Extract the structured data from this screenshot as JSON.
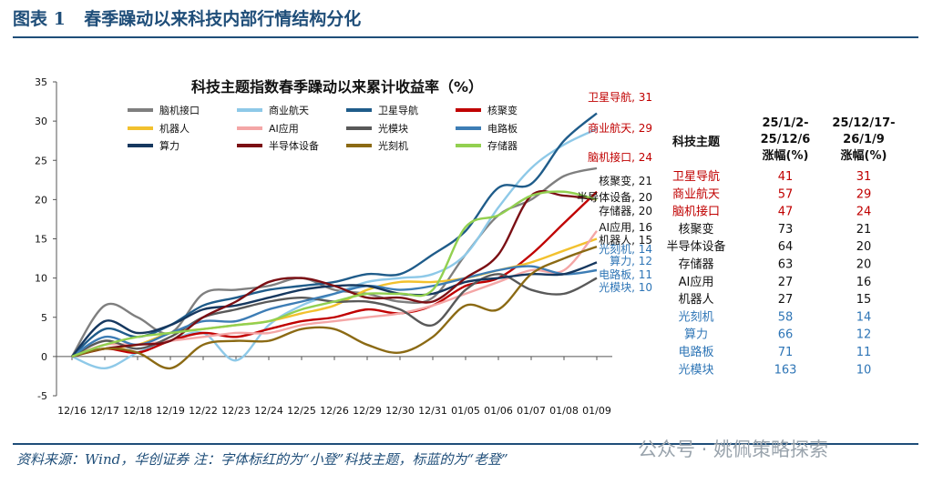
{
  "header": {
    "figure_no": "图表 1",
    "title": "春季躁动以来科技内部行情结构分化"
  },
  "footer": {
    "source": "资料来源：Wind，华创证券  注：字体标红的为“小登”科技主题，标蓝的为“老登”"
  },
  "watermark": {
    "text": "公众号 · 姚佩策略探索"
  },
  "colors": {
    "accent": "#1f4e79",
    "red": "#c00000",
    "blue": "#2e75b6",
    "black": "#111111"
  },
  "chart_data": {
    "type": "line",
    "title": "科技主题指数春季躁动以来累计收益率（%）",
    "xlabel": "",
    "ylabel": "",
    "ylim": [
      -5,
      35
    ],
    "yticks": [
      -5,
      0,
      5,
      10,
      15,
      20,
      25,
      30,
      35
    ],
    "x_labels": [
      "12/16",
      "12/17",
      "12/18",
      "12/19",
      "12/22",
      "12/23",
      "12/24",
      "12/25",
      "12/26",
      "12/29",
      "12/30",
      "12/31",
      "01/05",
      "01/06",
      "01/07",
      "01/08",
      "01/09"
    ],
    "series": [
      {
        "name": "脑机接口",
        "color": "#7f7f7f",
        "end_label": "脑机接口, 24",
        "label_color": "#c00000",
        "values": [
          0,
          6.5,
          5,
          3,
          8,
          8.5,
          9,
          10,
          8.5,
          8,
          7,
          7.5,
          13,
          18,
          20,
          23,
          24
        ]
      },
      {
        "name": "商业航天",
        "color": "#8ec9e8",
        "end_label": "商业航天, 29",
        "label_color": "#c00000",
        "values": [
          0,
          -1.5,
          0.5,
          2,
          3,
          -0.5,
          4,
          6.5,
          8,
          9.5,
          10,
          10.5,
          13,
          19,
          24,
          27,
          29
        ]
      },
      {
        "name": "卫星导航",
        "color": "#1f5c8a",
        "end_label": "卫星导航, 31",
        "label_color": "#c00000",
        "values": [
          0,
          3.5,
          2.5,
          4,
          6.5,
          7.5,
          8.5,
          9,
          9.5,
          10.5,
          10.5,
          13,
          16,
          21.5,
          22,
          27.5,
          31
        ]
      },
      {
        "name": "核聚变",
        "color": "#c00000",
        "end_label": "核聚变, 21",
        "label_color": "#111111",
        "values": [
          0,
          1,
          0.5,
          2,
          3,
          2.5,
          3.5,
          4.5,
          5,
          6,
          5.5,
          6.5,
          9,
          10,
          13,
          17,
          21
        ]
      },
      {
        "name": "机器人",
        "color": "#f2c12e",
        "end_label": "机器人, 15",
        "label_color": "#111111",
        "values": [
          0,
          1,
          1.5,
          3,
          3.5,
          4,
          4.5,
          5.5,
          6.5,
          8.5,
          9.5,
          9.5,
          10,
          11,
          12,
          13.5,
          15
        ]
      },
      {
        "name": "AI应用",
        "color": "#f4a6a6",
        "end_label": "AI应用, 16",
        "label_color": "#111111",
        "values": [
          0,
          1.5,
          1.5,
          2,
          2.5,
          3,
          3,
          4,
          4.5,
          5,
          5.5,
          6.5,
          8,
          9.5,
          11,
          11,
          16
        ]
      },
      {
        "name": "光模块",
        "color": "#595959",
        "end_label": "光模块, 10",
        "label_color": "#2e75b6",
        "values": [
          0,
          2,
          1,
          2.5,
          5,
          6,
          7,
          7.5,
          7,
          7,
          6,
          4,
          8.5,
          10.5,
          8.5,
          8,
          10
        ]
      },
      {
        "name": "电路板",
        "color": "#3d7db5",
        "end_label": "电路板, 11",
        "label_color": "#2e75b6",
        "values": [
          0,
          2.5,
          1.5,
          3,
          4.5,
          4.5,
          6,
          7,
          8,
          9,
          8.5,
          9,
          10,
          11,
          11.5,
          10.5,
          11
        ]
      },
      {
        "name": "算力",
        "color": "#16385f",
        "end_label": "算力, 12",
        "label_color": "#2e75b6",
        "values": [
          0,
          4.5,
          3,
          4,
          6,
          6.5,
          7.5,
          8.5,
          9,
          9,
          8,
          8,
          9.5,
          10,
          10.5,
          10.5,
          12
        ]
      },
      {
        "name": "半导体设备",
        "color": "#7b0f14",
        "end_label": "半导体设备, 20",
        "label_color": "#111111",
        "values": [
          0,
          1,
          1.5,
          2,
          5,
          7,
          9.5,
          10,
          9,
          7.5,
          7.5,
          7,
          10,
          13,
          20.5,
          20.5,
          20
        ]
      },
      {
        "name": "光刻机",
        "color": "#8b6a14",
        "end_label": "光刻机, 14",
        "label_color": "#2e75b6",
        "values": [
          0,
          1,
          0.5,
          -1.5,
          1.5,
          2,
          2,
          3.5,
          3.5,
          1.5,
          0.5,
          2.5,
          6.5,
          6,
          10.5,
          12.5,
          14
        ]
      },
      {
        "name": "存储器",
        "color": "#92d050",
        "end_label": "存储器, 20",
        "label_color": "#111111",
        "values": [
          0,
          1.5,
          2.5,
          3,
          3.5,
          4,
          4.5,
          6,
          7,
          8,
          8,
          8.5,
          16.5,
          18,
          20.5,
          21,
          20
        ]
      }
    ],
    "legend_placement": "top-left, inside plot, 4 columns"
  },
  "table": {
    "headers": [
      "科技主题",
      "25/1/2-25/12/6涨幅(%)",
      "25/12/17-26/1/9涨幅(%)"
    ],
    "header_lines": [
      [
        "科技主题"
      ],
      [
        "25/1/2-",
        "25/12/6",
        "涨幅(%)"
      ],
      [
        "25/12/17-",
        "26/1/9",
        "涨幅(%)"
      ]
    ],
    "rows": [
      {
        "name": "卫星导航",
        "v1": "41",
        "v2": "31",
        "color": "#c00000"
      },
      {
        "name": "商业航天",
        "v1": "57",
        "v2": "29",
        "color": "#c00000"
      },
      {
        "name": "脑机接口",
        "v1": "47",
        "v2": "24",
        "color": "#c00000"
      },
      {
        "name": "核聚变",
        "v1": "73",
        "v2": "21",
        "color": "#111111"
      },
      {
        "name": "半导体设备",
        "v1": "64",
        "v2": "20",
        "color": "#111111"
      },
      {
        "name": "存储器",
        "v1": "63",
        "v2": "20",
        "color": "#111111"
      },
      {
        "name": "AI应用",
        "v1": "27",
        "v2": "16",
        "color": "#111111"
      },
      {
        "name": "机器人",
        "v1": "27",
        "v2": "15",
        "color": "#111111"
      },
      {
        "name": "光刻机",
        "v1": "58",
        "v2": "14",
        "color": "#2e75b6"
      },
      {
        "name": "算力",
        "v1": "66",
        "v2": "12",
        "color": "#2e75b6"
      },
      {
        "name": "电路板",
        "v1": "71",
        "v2": "11",
        "color": "#2e75b6"
      },
      {
        "name": "光模块",
        "v1": "163",
        "v2": "10",
        "color": "#2e75b6"
      }
    ]
  }
}
